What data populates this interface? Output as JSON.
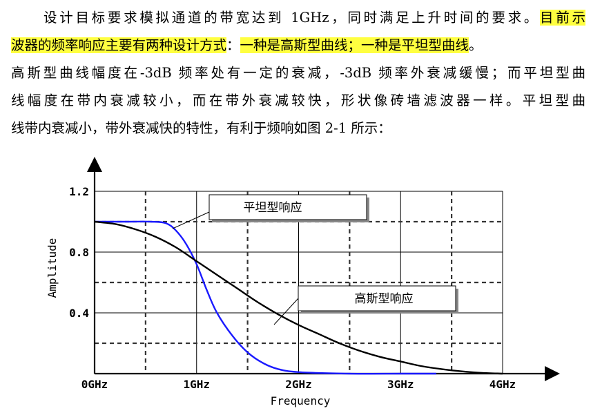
{
  "paragraph": {
    "line1_a": "设计目标要求模拟通道的带宽达到 1GHz，同时满足上升时间的要求。",
    "line1_hl": "目前示",
    "line2_hl1": "波器的频率响应主要有两种设计方式",
    "line2_colon": "：",
    "line2_hl2": "一种是高斯型曲线；一种是平坦型曲线",
    "line2_end": "。",
    "line3": "高斯型曲线幅度在-3dB 频率处有一定的衰减，-3dB 频率外衰减缓慢；而平坦型曲",
    "line4": "线幅度在带内衰减较小，而在带外衰减较快，形状像砖墙滤波器一样。平坦型曲",
    "line5": "线带内衰减小，带外衰减快的特性，有利于频响如图 2-1 所示："
  },
  "colors": {
    "highlight": "#ffff40",
    "flat_curve": "#1a1aff",
    "gaussian_curve": "#000000"
  },
  "chart_data": {
    "type": "line",
    "xlabel": "Frequency",
    "ylabel": "Amplitude",
    "x_ticks": [
      "0GHz",
      "1GHz",
      "2GHz",
      "3GHz",
      "4GHz"
    ],
    "y_ticks": [
      "0.4",
      "0.8",
      "1.2"
    ],
    "xlim": [
      0,
      4
    ],
    "ylim": [
      0,
      1.2
    ],
    "grid": true,
    "annotations": [
      {
        "text": "平坦型响应",
        "target_series": "flat"
      },
      {
        "text": "高斯型响应",
        "target_series": "gaussian"
      }
    ],
    "series": [
      {
        "key": "flat",
        "color": "#1a1aff",
        "x": [
          0,
          0.3,
          0.55,
          0.7,
          0.8,
          0.9,
          1.0,
          1.1,
          1.2,
          1.35,
          1.5,
          1.65,
          1.8,
          2.0,
          2.5,
          3.0,
          3.35
        ],
        "y": [
          1.0,
          1.0,
          1.0,
          0.99,
          0.94,
          0.85,
          0.72,
          0.55,
          0.4,
          0.25,
          0.14,
          0.07,
          0.03,
          0.01,
          0.0,
          0.0,
          0.0
        ]
      },
      {
        "key": "gaussian",
        "color": "#000000",
        "x": [
          0,
          0.2,
          0.4,
          0.6,
          0.8,
          1.0,
          1.2,
          1.4,
          1.6,
          1.8,
          2.0,
          2.2,
          2.4,
          2.6,
          2.8,
          3.0,
          3.2,
          3.4,
          3.6,
          3.8,
          4.0
        ],
        "y": [
          1.0,
          0.985,
          0.95,
          0.9,
          0.83,
          0.74,
          0.65,
          0.56,
          0.47,
          0.39,
          0.32,
          0.26,
          0.2,
          0.15,
          0.11,
          0.08,
          0.05,
          0.03,
          0.015,
          0.005,
          0.0
        ]
      }
    ]
  }
}
